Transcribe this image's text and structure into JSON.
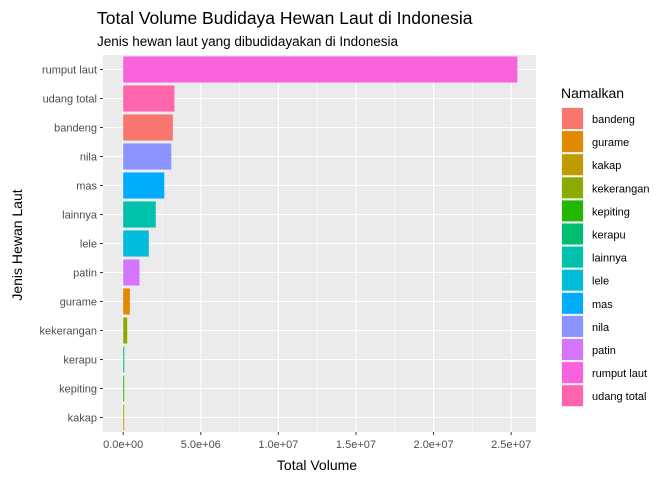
{
  "chart_data": {
    "type": "bar",
    "orientation": "horizontal",
    "title": "Total Volume Budidaya Hewan Laut di Indonesia",
    "subtitle": "Jenis hewan laut yang dibudidayakan di Indonesia",
    "xlabel": "Total Volume",
    "ylabel": "Jenis Hewan Laut",
    "xlim": [
      -1300000,
      26600000
    ],
    "x_ticks": [
      0,
      5000000,
      10000000,
      15000000,
      20000000,
      25000000
    ],
    "x_tick_labels": [
      "0.0e+00",
      "5.0e+06",
      "1.0e+07",
      "1.5e+07",
      "2.0e+07",
      "2.5e+07"
    ],
    "categories": [
      "rumput laut",
      "udang total",
      "bandeng",
      "nila",
      "mas",
      "lainnya",
      "lele",
      "patin",
      "gurame",
      "kekerangan",
      "kerapu",
      "kepiting",
      "kakap"
    ],
    "values": [
      25400000,
      3300000,
      3200000,
      3100000,
      2650000,
      2100000,
      1650000,
      1050000,
      430000,
      260000,
      70000,
      50000,
      40000
    ],
    "grid": true,
    "legend": {
      "title": "Namalkan",
      "position": "right",
      "entries": [
        "bandeng",
        "gurame",
        "kakap",
        "kekerangan",
        "kepiting",
        "kerapu",
        "lainnya",
        "lele",
        "mas",
        "nila",
        "patin",
        "rumput laut",
        "udang total"
      ]
    },
    "colors": {
      "bandeng": "#F8766D",
      "gurame": "#E18A00",
      "kakap": "#BE9C00",
      "kekerangan": "#8CAB00",
      "kepiting": "#24B700",
      "kerapu": "#00BE70",
      "lainnya": "#00C1AB",
      "lele": "#00BBDA",
      "mas": "#00ACFC",
      "nila": "#8B93FF",
      "patin": "#D575FE",
      "rumput laut": "#F962DD",
      "udang total": "#FF65AC"
    },
    "panel_background": "#EBEBEB",
    "grid_color": "#FFFFFF"
  }
}
